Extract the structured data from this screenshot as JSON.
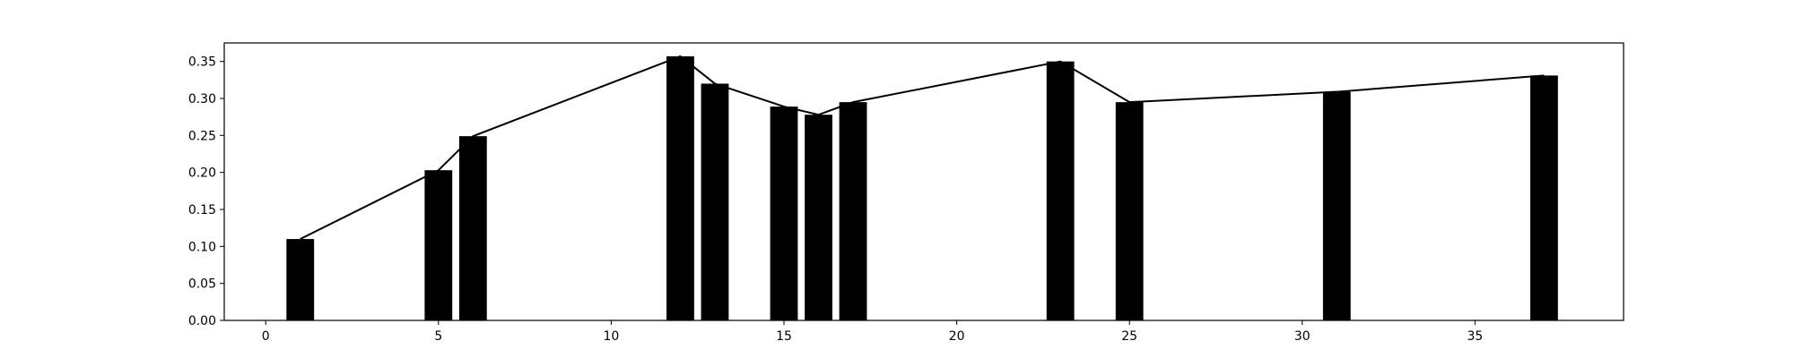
{
  "chart_data": {
    "type": "bar",
    "bar_color": "#000000",
    "line_color": "#000000",
    "grid": false,
    "xlim": [
      -1.2,
      39.3
    ],
    "ylim": [
      0,
      0.375
    ],
    "xticks": [
      0,
      5,
      10,
      15,
      20,
      25,
      30,
      35
    ],
    "xtick_labels": [
      "0",
      "5",
      "10",
      "15",
      "20",
      "25",
      "30",
      "35"
    ],
    "yticks": [
      0,
      0.05,
      0.1,
      0.15,
      0.2,
      0.25,
      0.3,
      0.35
    ],
    "ytick_labels": [
      "0.00",
      "0.05",
      "0.10",
      "0.15",
      "0.20",
      "0.25",
      "0.30",
      "0.35"
    ],
    "x": [
      1,
      5,
      6,
      12,
      13,
      15,
      16,
      17,
      23,
      25,
      31,
      37
    ],
    "values": [
      0.11,
      0.203,
      0.249,
      0.357,
      0.32,
      0.289,
      0.278,
      0.295,
      0.35,
      0.295,
      0.309,
      0.331
    ],
    "bar_width": 0.8
  }
}
